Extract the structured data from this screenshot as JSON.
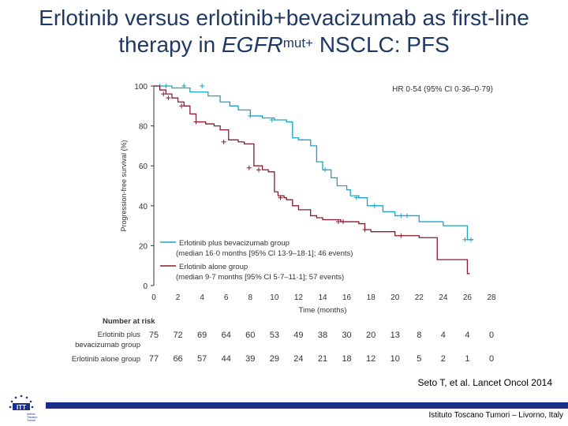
{
  "slide": {
    "title_line1": "Erlotinib versus erlotinib+bevacizumab as first-line",
    "title_line2_pre": "therapy in ",
    "title_line2_italic": "EGFR",
    "title_line2_sup": "mut+",
    "title_line2_post": " NSCLC: PFS",
    "reference": "Seto T, et al. Lancet Oncol 2014",
    "footer": "Istituto Toscano Tumori – Livorno, Italy",
    "logo_text": [
      "Istituto",
      "Toscano",
      "Tumori"
    ]
  },
  "colors": {
    "title": "#1f3864",
    "combo": "#1aa3c4",
    "alone": "#8b1a2b",
    "footer_bar": "#1a2f8a"
  },
  "chart_data": {
    "type": "line",
    "title": "Erlotinib versus erlotinib+bevacizumab as first-line therapy in EGFRmut+ NSCLC: PFS",
    "xlabel": "Time (months)",
    "ylabel": "Progression-free survival (%)",
    "xlim": [
      0,
      28
    ],
    "ylim": [
      0,
      100
    ],
    "xticks": [
      "0",
      "2",
      "4",
      "6",
      "8",
      "10",
      "12",
      "14",
      "16",
      "18",
      "20",
      "22",
      "24",
      "26",
      "28"
    ],
    "yticks": [
      "0",
      "20",
      "40",
      "60",
      "80",
      "100"
    ],
    "annotation": "HR 0·54 (95% CI 0·36–0·79)",
    "legend": [
      {
        "label": "Erlotinib plus bevacizumab group",
        "detail": "(median 16·0 months [95% CI 13·9–18·1]; 46 events)"
      },
      {
        "label": "Erlotinib alone group",
        "detail": "(median 9·7 months [95% CI 5·7–11·1]; 57 events)"
      }
    ],
    "series": [
      {
        "name": "Erlotinib plus bevacizumab group",
        "steps": [
          [
            0,
            100
          ],
          [
            1.5,
            99
          ],
          [
            3,
            97
          ],
          [
            4.5,
            95
          ],
          [
            5.5,
            92
          ],
          [
            6.3,
            90
          ],
          [
            7,
            88
          ],
          [
            8,
            85
          ],
          [
            9,
            84
          ],
          [
            10,
            83
          ],
          [
            11,
            82
          ],
          [
            11.5,
            74
          ],
          [
            12,
            73
          ],
          [
            13,
            70
          ],
          [
            13.5,
            62
          ],
          [
            14,
            58
          ],
          [
            14.7,
            54
          ],
          [
            15.2,
            50
          ],
          [
            16,
            48
          ],
          [
            16.3,
            45
          ],
          [
            17,
            44
          ],
          [
            17.7,
            40
          ],
          [
            19,
            37
          ],
          [
            20,
            35
          ],
          [
            22,
            32
          ],
          [
            24,
            30
          ],
          [
            26,
            23
          ],
          [
            26.5,
            23
          ]
        ],
        "censor": [
          [
            0.5,
            100
          ],
          [
            1,
            100
          ],
          [
            2.5,
            100
          ],
          [
            4,
            100
          ],
          [
            8,
            85
          ],
          [
            9.8,
            83
          ],
          [
            14.2,
            58
          ],
          [
            16.8,
            44
          ],
          [
            18.3,
            40
          ],
          [
            20.5,
            35
          ],
          [
            21,
            35
          ],
          [
            25.8,
            23
          ],
          [
            26.3,
            23
          ]
        ]
      },
      {
        "name": "Erlotinib alone group",
        "steps": [
          [
            0,
            100
          ],
          [
            0.5,
            98
          ],
          [
            1,
            96
          ],
          [
            1.5,
            94
          ],
          [
            2,
            92
          ],
          [
            2.5,
            90
          ],
          [
            3,
            86
          ],
          [
            3.5,
            82
          ],
          [
            4.3,
            81
          ],
          [
            5,
            80
          ],
          [
            5.5,
            78
          ],
          [
            6.2,
            73
          ],
          [
            7,
            72
          ],
          [
            7.5,
            71
          ],
          [
            8.3,
            60
          ],
          [
            9,
            58
          ],
          [
            9.5,
            57
          ],
          [
            10,
            47
          ],
          [
            10.3,
            45
          ],
          [
            10.8,
            44
          ],
          [
            11,
            43
          ],
          [
            11.5,
            40
          ],
          [
            12,
            38
          ],
          [
            13,
            35
          ],
          [
            13.5,
            34
          ],
          [
            14,
            33
          ],
          [
            15.5,
            32
          ],
          [
            17,
            31
          ],
          [
            17.5,
            28
          ],
          [
            18,
            27
          ],
          [
            20,
            25
          ],
          [
            22,
            24
          ],
          [
            23.5,
            13
          ],
          [
            24,
            13
          ],
          [
            26,
            6
          ],
          [
            26.2,
            6
          ]
        ],
        "censor": [
          [
            0.8,
            96
          ],
          [
            1.2,
            94
          ],
          [
            2.3,
            90
          ],
          [
            3.5,
            82
          ],
          [
            5.8,
            72
          ],
          [
            7.9,
            59
          ],
          [
            8.7,
            58
          ],
          [
            10.5,
            44
          ],
          [
            15.3,
            32
          ],
          [
            15.7,
            32
          ],
          [
            17.5,
            28
          ],
          [
            20.5,
            25
          ]
        ]
      }
    ],
    "risk_table": {
      "title": "Number at risk",
      "rows": [
        {
          "label_line1": "Erlotinib plus",
          "label_line2": "bevacizumab group",
          "values": [
            "75",
            "72",
            "69",
            "64",
            "60",
            "53",
            "49",
            "38",
            "30",
            "20",
            "13",
            "8",
            "4",
            "4",
            "0"
          ]
        },
        {
          "label_line1": "Erlotinib alone group",
          "label_line2": "",
          "values": [
            "77",
            "66",
            "57",
            "44",
            "39",
            "29",
            "24",
            "21",
            "18",
            "12",
            "10",
            "5",
            "2",
            "1",
            "0"
          ]
        }
      ]
    }
  }
}
